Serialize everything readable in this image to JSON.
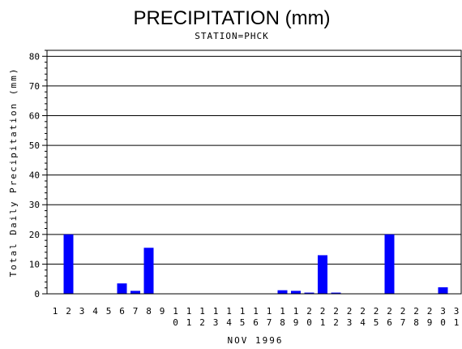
{
  "chart_data": {
    "type": "bar",
    "title": "PRECIPITATION (mm)",
    "subtitle": "STATION=PHCK",
    "xlabel": "NOV 1996",
    "ylabel": "Total Daily Precipitation (mm)",
    "ylim": [
      0,
      82
    ],
    "yticks": [
      "0",
      "10",
      "20",
      "30",
      "40",
      "50",
      "60",
      "70",
      "80"
    ],
    "grid": true,
    "bar_color": "#0000ff",
    "categories": [
      "1",
      "2",
      "3",
      "4",
      "5",
      "6",
      "7",
      "8",
      "9",
      "10",
      "11",
      "12",
      "13",
      "14",
      "15",
      "16",
      "17",
      "18",
      "19",
      "20",
      "21",
      "22",
      "23",
      "24",
      "25",
      "26",
      "27",
      "28",
      "29",
      "30",
      "31"
    ],
    "values": [
      0,
      20,
      0,
      0,
      0,
      3.5,
      1,
      15.5,
      0,
      0,
      0,
      0,
      0,
      0,
      0,
      0,
      0,
      1.2,
      1,
      0.4,
      13,
      0.4,
      0,
      0,
      0,
      20,
      0,
      0,
      0,
      2.2,
      0
    ]
  }
}
